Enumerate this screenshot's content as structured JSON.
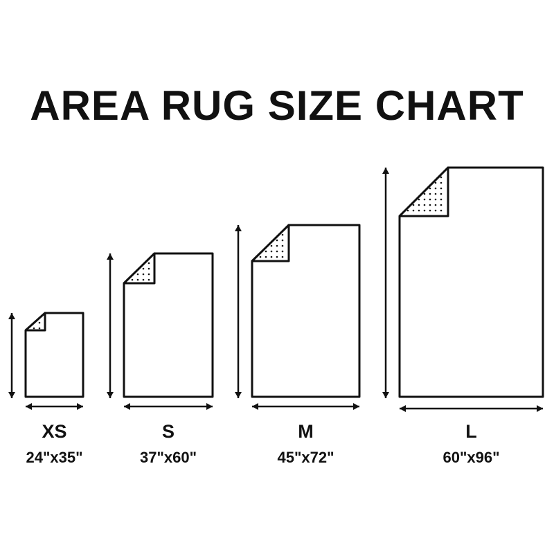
{
  "title": "AREA RUG SIZE CHART",
  "colors": {
    "ink": "#111111",
    "background": "#ffffff"
  },
  "rugs": [
    {
      "size": "XS",
      "dimensions": "24\"x35\"",
      "width_in": 24,
      "length_in": 35
    },
    {
      "size": "S",
      "dimensions": "37\"x60\"",
      "width_in": 37,
      "length_in": 60
    },
    {
      "size": "M",
      "dimensions": "45\"x72\"",
      "width_in": 45,
      "length_in": 72
    },
    {
      "size": "L",
      "dimensions": "60\"x96\"",
      "width_in": 60,
      "length_in": 96
    }
  ]
}
